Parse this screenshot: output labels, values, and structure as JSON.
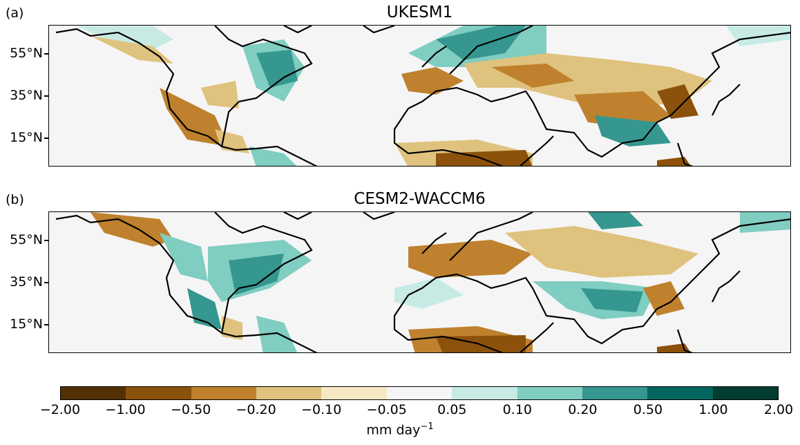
{
  "panels": [
    {
      "letter": "(a)",
      "title": "UKESM1"
    },
    {
      "letter": "(b)",
      "title": "CESM2-WACCM6"
    }
  ],
  "lat_ticks": [
    "55°N",
    "35°N",
    "15°N"
  ],
  "colorbar": {
    "ticks": [
      "−2.00",
      "−1.00",
      "−0.50",
      "−0.20",
      "−0.10",
      "−0.05",
      "0.05",
      "0.10",
      "0.20",
      "0.50",
      "1.00",
      "2.00"
    ],
    "colors": [
      "#543005",
      "#8c510a",
      "#bf812d",
      "#dfc27d",
      "#f6e8c3",
      "#f5f5f5",
      "#c7eae5",
      "#80cdc1",
      "#35978f",
      "#01665e",
      "#003c30"
    ],
    "unit_base": "mm day",
    "unit_exp": "−1"
  },
  "map_data": {
    "type": "contour-map",
    "variable_unit": "mm day−1",
    "projection": "PlateCarree",
    "lon_range": [
      -180,
      180
    ],
    "lat_range": [
      0,
      68
    ],
    "lat_ticks_deg": [
      55,
      35,
      15
    ],
    "coastlines": true
  }
}
